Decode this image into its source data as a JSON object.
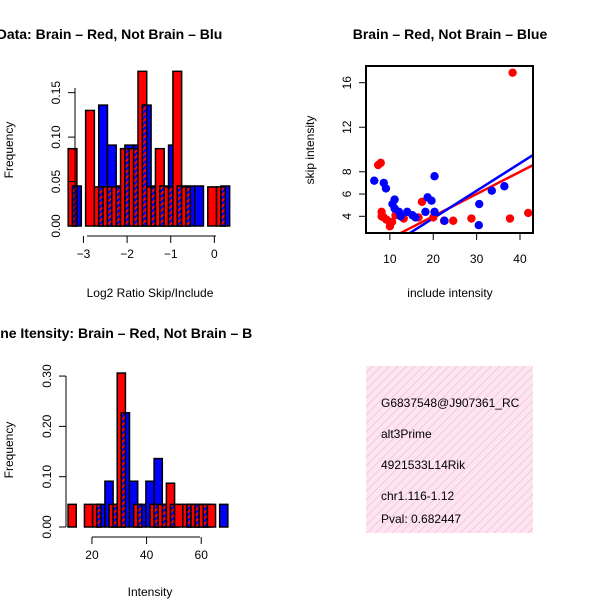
{
  "chart_data": [
    {
      "type": "bar",
      "id": "ratio-hist",
      "title": "RatioData: Brain – Red, Not Brain – Blu",
      "xlabel": "Log2 Ratio Skip/Include",
      "ylabel": "Frequency",
      "xlim": [
        -3.4,
        0.45
      ],
      "ylim": [
        0,
        0.18
      ],
      "x_ticks": [
        -3,
        -2,
        -1,
        0
      ],
      "x_tick_labels": [
        "−3",
        "−2",
        "−1",
        "0"
      ],
      "y_ticks": [
        0,
        0.05,
        0.1,
        0.15
      ],
      "y_tick_labels": [
        "0.00",
        "0.05",
        "0.10",
        "0.15"
      ],
      "bin_width": 0.2,
      "series": [
        {
          "name": "Brain",
          "color": "#ff0000",
          "offset": -0.05,
          "left": [
            -3.3,
            -2.9,
            -2.7,
            -2.5,
            -2.3,
            -2.1,
            -1.9,
            -1.7,
            -1.5,
            -1.3,
            -1.1,
            -0.9,
            -0.7,
            -0.5,
            -0.1,
            0.1
          ],
          "values": [
            0.087,
            0.13,
            0.044,
            0.044,
            0.044,
            0.087,
            0.087,
            0.174,
            0.044,
            0.087,
            0.044,
            0.174,
            0.044,
            0.0,
            0.044,
            0.044
          ]
        },
        {
          "name": "Not Brain",
          "color": "#0000ff",
          "offset": 0.05,
          "left": [
            -3.3,
            -2.9,
            -2.7,
            -2.5,
            -2.3,
            -2.1,
            -1.9,
            -1.7,
            -1.5,
            -1.3,
            -1.1,
            -0.9,
            -0.7,
            -0.5,
            -0.1,
            0.1
          ],
          "values": [
            0.045,
            0.0,
            0.136,
            0.091,
            0.045,
            0.091,
            0.091,
            0.136,
            0.045,
            0.045,
            0.091,
            0.045,
            0.045,
            0.045,
            0.0,
            0.045
          ]
        }
      ]
    },
    {
      "type": "scatter",
      "id": "intensity-scatter",
      "title": "Brain – Red, Not Brain – Blue",
      "xlabel": "include intensity",
      "ylabel": "skip intensity",
      "xlim": [
        4.5,
        43
      ],
      "ylim": [
        2.5,
        17.5
      ],
      "x_ticks": [
        10,
        20,
        30,
        40
      ],
      "y_ticks": [
        4,
        6,
        8,
        12,
        16
      ],
      "series": [
        {
          "name": "Brain",
          "color": "#ff0000",
          "points": [
            [
              7.3,
              8.6
            ],
            [
              7.9,
              8.8
            ],
            [
              8.1,
              4.4
            ],
            [
              8.1,
              4.0
            ],
            [
              8.6,
              3.9
            ],
            [
              9.2,
              3.7
            ],
            [
              10.0,
              3.1
            ],
            [
              10.5,
              3.5
            ],
            [
              11.3,
              4.1
            ],
            [
              13.2,
              3.8
            ],
            [
              16.6,
              3.9
            ],
            [
              17.4,
              5.3
            ],
            [
              20.0,
              3.9
            ],
            [
              22.5,
              3.6
            ],
            [
              24.6,
              3.6
            ],
            [
              28.8,
              3.8
            ],
            [
              37.7,
              3.8
            ],
            [
              38.3,
              16.9
            ],
            [
              41.9,
              4.3
            ]
          ],
          "fit": [
            [
              4.5,
              0.9
            ],
            [
              43,
              8.6
            ]
          ]
        },
        {
          "name": "Not Brain",
          "color": "#0000ff",
          "points": [
            [
              6.4,
              7.2
            ],
            [
              8.6,
              7.0
            ],
            [
              9.1,
              6.5
            ],
            [
              10.6,
              5.1
            ],
            [
              11.1,
              5.5
            ],
            [
              11.1,
              4.7
            ],
            [
              12.1,
              4.4
            ],
            [
              12.5,
              4.0
            ],
            [
              14.0,
              4.4
            ],
            [
              15.2,
              4.1
            ],
            [
              15.9,
              3.9
            ],
            [
              18.2,
              4.4
            ],
            [
              18.7,
              5.7
            ],
            [
              19.6,
              5.4
            ],
            [
              20.3,
              7.6
            ],
            [
              20.3,
              4.4
            ],
            [
              22.6,
              3.6
            ],
            [
              30.5,
              3.2
            ],
            [
              30.6,
              5.1
            ],
            [
              33.5,
              6.3
            ],
            [
              36.4,
              6.7
            ]
          ],
          "fit": [
            [
              4.5,
              0.0
            ],
            [
              43,
              9.5
            ]
          ]
        }
      ]
    },
    {
      "type": "bar",
      "id": "intensity-hist",
      "title": "Line Itensity: Brain – Red, Not Brain – B",
      "xlabel": "Intensity",
      "ylabel": "Frequency",
      "xlim": [
        10.5,
        72
      ],
      "ylim": [
        0,
        0.32
      ],
      "x_ticks": [
        20,
        40,
        60
      ],
      "y_ticks": [
        0,
        0.1,
        0.2,
        0.3
      ],
      "y_tick_labels": [
        "0.00",
        "0.10",
        "0.20",
        "0.30"
      ],
      "bin_width": 3,
      "series": [
        {
          "name": "Brain",
          "color": "#ff0000",
          "offset": -0.75,
          "left": [
            12,
            18,
            21,
            24,
            27,
            30,
            33,
            36,
            39,
            42,
            45,
            48,
            51,
            54,
            57,
            60,
            63,
            66
          ],
          "values": [
            0.045,
            0.045,
            0.045,
            0.0,
            0.045,
            0.306,
            0.0,
            0.045,
            0.0,
            0.045,
            0.045,
            0.087,
            0.045,
            0.045,
            0.045,
            0.045,
            0.045,
            0.0
          ]
        },
        {
          "name": "Not Brain",
          "color": "#0000ff",
          "offset": 0.75,
          "left": [
            12,
            18,
            21,
            24,
            27,
            30,
            33,
            36,
            39,
            42,
            45,
            48,
            51,
            54,
            57,
            60,
            63,
            66
          ],
          "values": [
            0.0,
            0.0,
            0.045,
            0.091,
            0.045,
            0.227,
            0.091,
            0.045,
            0.091,
            0.136,
            0.045,
            0.045,
            0.0,
            0.045,
            0.045,
            0.045,
            0.0,
            0.045
          ]
        }
      ]
    }
  ],
  "info_panel": {
    "lines": [
      "G6837548@J907361_RC",
      "alt3Prime",
      "4921533L14Rik",
      "chr1.116-1.12"
    ],
    "pval": "Pval: 0.682447",
    "pval_color": "#800000",
    "background_color": "#fce4f0"
  }
}
